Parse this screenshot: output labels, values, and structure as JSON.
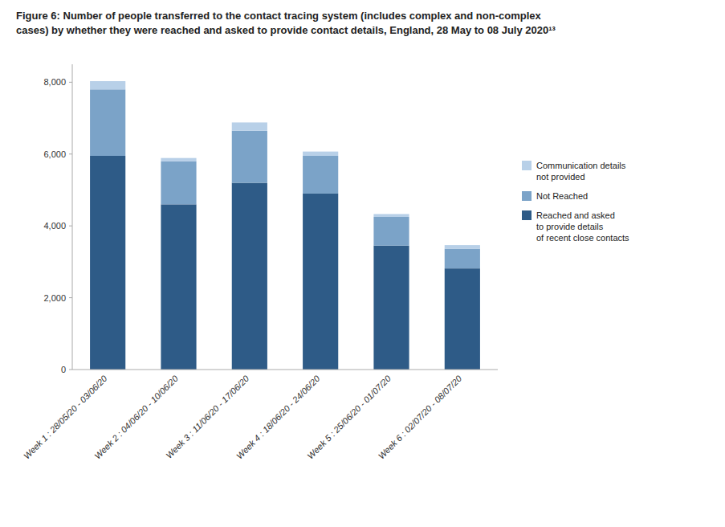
{
  "chart_data": {
    "type": "bar",
    "stacked": true,
    "title": "Figure 6: Number of people transferred to the contact tracing system (includes complex and non-complex\ncases) by whether they were reached and asked to provide contact details, England, 28 May to 08 July 2020¹³",
    "categories": [
      "Week 1 : 28/05/20 - 03/06/20",
      "Week 2 : 04/06/20 - 10/06/20",
      "Week 3 : 11/06/20 - 17/06/20",
      "Week 4 : 18/06/20 - 24/06/20",
      "Week 5 : 25/06/20 - 01/07/20",
      "Week 6 : 02/07/20 - 08/07/20"
    ],
    "series": [
      {
        "name": "Reached and asked\nto provide details\nof recent close contacts",
        "color": "#2E5B87",
        "values": [
          5950,
          4600,
          5200,
          4900,
          3450,
          2815
        ]
      },
      {
        "name": "Not Reached",
        "color": "#7BA3C8",
        "values": [
          1850,
          1200,
          1450,
          1050,
          800,
          550
        ]
      },
      {
        "name": "Communication details\nnot provided",
        "color": "#B8D0E8",
        "values": [
          230,
          90,
          230,
          120,
          80,
          100
        ]
      }
    ],
    "ylim": [
      0,
      8500
    ],
    "yticks": [
      0,
      {
        "value": 2000,
        "label": "2,000"
      },
      {
        "value": 4000,
        "label": "4,000"
      },
      {
        "value": 6000,
        "label": "6,000"
      },
      {
        "value": 8000,
        "label": "8,000"
      }
    ],
    "grid": false,
    "legend": "right"
  }
}
